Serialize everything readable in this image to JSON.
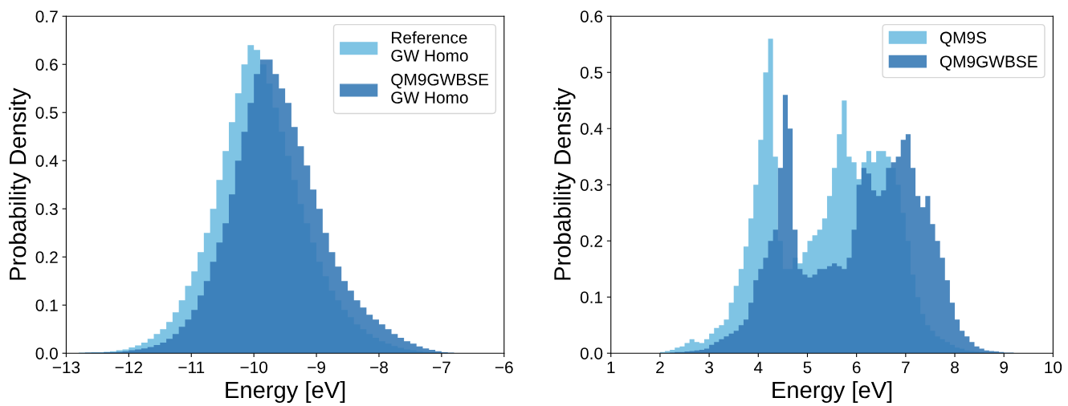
{
  "chart_data": [
    {
      "type": "histogram",
      "xlabel": "Energy [eV]",
      "ylabel": "Probability Density",
      "legend": "upper right",
      "bins": [
        -12.8,
        -12.7,
        -12.6,
        -12.5,
        -12.4,
        -12.3,
        -12.2,
        -12.1,
        -12.0,
        -11.9,
        -11.8,
        -11.7,
        -11.6,
        -11.5,
        -11.4,
        -11.3,
        -11.2,
        -11.1,
        -11.0,
        -10.9,
        -10.8,
        -10.7,
        -10.6,
        -10.5,
        -10.4,
        -10.3,
        -10.2,
        -10.1,
        -10.0,
        -9.9,
        -9.8,
        -9.7,
        -9.6,
        -9.5,
        -9.4,
        -9.3,
        -9.2,
        -9.1,
        -9.0,
        -8.9,
        -8.8,
        -8.7,
        -8.6,
        -8.5,
        -8.4,
        -8.3,
        -8.2,
        -8.1,
        -8.0,
        -7.9,
        -7.8,
        -7.7,
        -7.6,
        -7.5,
        -7.4,
        -7.3,
        -7.2,
        -7.1,
        -7.0,
        -6.9,
        -6.8
      ],
      "series": [
        {
          "name": "Reference\nGW Homo",
          "color": "#7fc4e4",
          "values": [
            0.001,
            0.001,
            0.002,
            0.002,
            0.003,
            0.004,
            0.006,
            0.008,
            0.012,
            0.016,
            0.022,
            0.03,
            0.04,
            0.05,
            0.065,
            0.085,
            0.11,
            0.14,
            0.17,
            0.21,
            0.25,
            0.3,
            0.36,
            0.42,
            0.48,
            0.54,
            0.6,
            0.64,
            0.63,
            0.6,
            0.56,
            0.51,
            0.46,
            0.41,
            0.36,
            0.31,
            0.27,
            0.23,
            0.19,
            0.16,
            0.13,
            0.11,
            0.09,
            0.075,
            0.06,
            0.05,
            0.04,
            0.032,
            0.025,
            0.02,
            0.015,
            0.011,
            0.008,
            0.006,
            0.004,
            0.003,
            0.002,
            0.001,
            0.001,
            0
          ]
        },
        {
          "name": "QM9GWBSE\nGW Homo",
          "color": "#3478b5",
          "values": [
            0,
            0.001,
            0.001,
            0.001,
            0.002,
            0.002,
            0.003,
            0.004,
            0.006,
            0.008,
            0.01,
            0.013,
            0.017,
            0.022,
            0.03,
            0.04,
            0.055,
            0.07,
            0.09,
            0.12,
            0.15,
            0.19,
            0.23,
            0.27,
            0.33,
            0.4,
            0.46,
            0.52,
            0.58,
            0.61,
            0.61,
            0.58,
            0.55,
            0.52,
            0.47,
            0.43,
            0.39,
            0.34,
            0.3,
            0.25,
            0.21,
            0.18,
            0.15,
            0.13,
            0.11,
            0.095,
            0.08,
            0.07,
            0.06,
            0.05,
            0.04,
            0.032,
            0.025,
            0.02,
            0.014,
            0.01,
            0.007,
            0.004,
            0.002,
            0.001
          ]
        }
      ],
      "xlim": [
        -13,
        -6
      ],
      "xticks": [
        {
          "value": -13,
          "label": "−13"
        },
        {
          "value": -12,
          "label": "−12"
        },
        {
          "value": -11,
          "label": "−11"
        },
        {
          "value": -10,
          "label": "−10"
        },
        {
          "value": -9,
          "label": "−9"
        },
        {
          "value": -8,
          "label": "−8"
        },
        {
          "value": -7,
          "label": "−7"
        },
        {
          "value": -6,
          "label": "−6"
        }
      ],
      "ylim": [
        0,
        0.7
      ],
      "yticks": [
        {
          "value": 0,
          "label": "0.0"
        },
        0.1,
        0.2,
        0.3,
        0.4,
        0.5,
        0.6,
        0.7
      ]
    },
    {
      "type": "histogram",
      "xlabel": "Energy [eV]",
      "ylabel": "Probability Density",
      "legend": "upper right",
      "bins": [
        2.0,
        2.1,
        2.2,
        2.3,
        2.4,
        2.5,
        2.6,
        2.7,
        2.8,
        2.9,
        3.0,
        3.1,
        3.2,
        3.3,
        3.4,
        3.5,
        3.6,
        3.7,
        3.8,
        3.9,
        4.0,
        4.1,
        4.2,
        4.3,
        4.4,
        4.5,
        4.6,
        4.7,
        4.8,
        4.9,
        5.0,
        5.1,
        5.2,
        5.3,
        5.4,
        5.5,
        5.6,
        5.7,
        5.8,
        5.9,
        6.0,
        6.1,
        6.2,
        6.3,
        6.4,
        6.5,
        6.6,
        6.7,
        6.8,
        6.9,
        7.0,
        7.1,
        7.2,
        7.3,
        7.4,
        7.5,
        7.6,
        7.7,
        7.8,
        7.9,
        8.0,
        8.1,
        8.2,
        8.3,
        8.4,
        8.5,
        8.6,
        8.7,
        8.8,
        8.9,
        9.0,
        9.1,
        9.2,
        9.3
      ],
      "series": [
        {
          "name": "QM9S",
          "color": "#7fc4e4",
          "values": [
            0.002,
            0.004,
            0.006,
            0.01,
            0.012,
            0.018,
            0.025,
            0.02,
            0.018,
            0.025,
            0.035,
            0.045,
            0.05,
            0.06,
            0.09,
            0.12,
            0.15,
            0.19,
            0.24,
            0.3,
            0.38,
            0.5,
            0.56,
            0.35,
            0.2,
            0.15,
            0.15,
            0.17,
            0.16,
            0.18,
            0.2,
            0.21,
            0.22,
            0.24,
            0.28,
            0.33,
            0.39,
            0.45,
            0.35,
            0.34,
            0.31,
            0.34,
            0.36,
            0.34,
            0.36,
            0.36,
            0.35,
            0.33,
            0.3,
            0.25,
            0.2,
            0.14,
            0.1,
            0.07,
            0.05,
            0.04,
            0.03,
            0.025,
            0.02,
            0.015,
            0.01,
            0.008,
            0.005,
            0.004,
            0.003,
            0.002,
            0.001,
            0.001,
            0,
            0,
            0,
            0,
            0
          ]
        },
        {
          "name": "QM9GWBSE",
          "color": "#3478b5",
          "values": [
            0,
            0,
            0.001,
            0.002,
            0.002,
            0.003,
            0.004,
            0.005,
            0.006,
            0.008,
            0.015,
            0.02,
            0.025,
            0.03,
            0.035,
            0.04,
            0.05,
            0.06,
            0.09,
            0.13,
            0.15,
            0.17,
            0.2,
            0.22,
            0.33,
            0.46,
            0.4,
            0.22,
            0.15,
            0.14,
            0.135,
            0.14,
            0.15,
            0.15,
            0.155,
            0.16,
            0.155,
            0.15,
            0.17,
            0.22,
            0.3,
            0.33,
            0.32,
            0.29,
            0.28,
            0.29,
            0.33,
            0.34,
            0.35,
            0.38,
            0.39,
            0.33,
            0.28,
            0.26,
            0.28,
            0.23,
            0.2,
            0.17,
            0.13,
            0.09,
            0.06,
            0.04,
            0.03,
            0.02,
            0.012,
            0.008,
            0.005,
            0.004,
            0.003,
            0.002,
            0.001,
            0.001,
            0
          ]
        }
      ],
      "xlim": [
        1,
        10
      ],
      "xticks": [
        1,
        2,
        3,
        4,
        5,
        6,
        7,
        8,
        9,
        10
      ],
      "ylim": [
        0,
        0.6
      ],
      "yticks": [
        {
          "value": 0,
          "label": "0.0"
        },
        0.1,
        0.2,
        0.3,
        0.4,
        0.5,
        0.6
      ]
    }
  ]
}
